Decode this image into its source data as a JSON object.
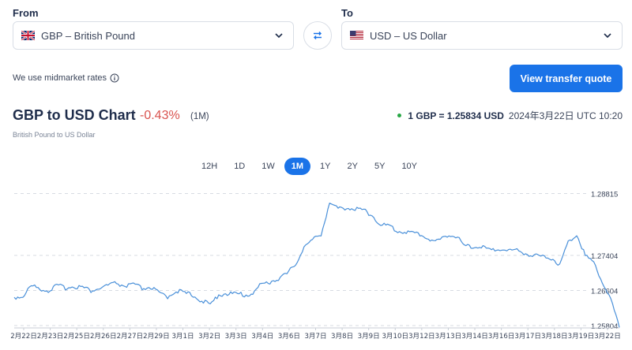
{
  "converter": {
    "from_label": "From",
    "to_label": "To",
    "from_value": "GBP – British Pound",
    "to_value": "USD – US Dollar",
    "from_flag": "uk-flag-icon",
    "to_flag": "us-flag-icon"
  },
  "midmarket_text": "We use midmarket rates",
  "cta_label": "View transfer quote",
  "colors": {
    "accent": "#1a73e8",
    "negative": "#d9534f",
    "live": "#28a745",
    "line": "#4a90d9"
  },
  "header": {
    "title": "GBP to USD Chart",
    "change": "-0.43%",
    "period": "(1M)",
    "subtitle": "British Pound to US Dollar",
    "rate": "1 GBP = 1.25834 USD",
    "timestamp": "2024年3月22日 UTC 10:20"
  },
  "ranges": [
    {
      "label": "12H",
      "active": false
    },
    {
      "label": "1D",
      "active": false
    },
    {
      "label": "1W",
      "active": false
    },
    {
      "label": "1M",
      "active": true
    },
    {
      "label": "1Y",
      "active": false
    },
    {
      "label": "2Y",
      "active": false
    },
    {
      "label": "5Y",
      "active": false
    },
    {
      "label": "10Y",
      "active": false
    }
  ],
  "chart_data": {
    "type": "line",
    "title": "",
    "xlabel": "",
    "ylabel": "",
    "ylim": [
      1.2575,
      1.2895
    ],
    "yticks": [
      "1.28815",
      "1.27404",
      "1.26604",
      "1.25804"
    ],
    "xticks": [
      "2月22日",
      "2月23日",
      "2月25日",
      "2月26日",
      "2月27日",
      "2月29日",
      "3月1日",
      "3月2日",
      "3月3日",
      "3月4日",
      "3月6日",
      "3月7日",
      "3月8日",
      "3月9日",
      "3月10日",
      "3月12日",
      "3月13日",
      "3月14日",
      "3月16日",
      "3月17日",
      "3月18日",
      "3月19日",
      "3月22日"
    ],
    "series": [
      {
        "values": [
          1.2645,
          1.2647,
          1.2671,
          1.2665,
          1.266,
          1.2671,
          1.2667,
          1.267,
          1.2668,
          1.266,
          1.2665,
          1.2672,
          1.2677,
          1.267,
          1.2674,
          1.2665,
          1.2668,
          1.2654,
          1.2646,
          1.2661,
          1.2654,
          1.265,
          1.2637,
          1.2627,
          1.2652,
          1.2653,
          1.2653,
          1.265,
          1.2654,
          1.2675,
          1.268,
          1.2688,
          1.2698,
          1.272,
          1.276,
          1.2775,
          1.279,
          1.286,
          1.2846,
          1.285,
          1.2846,
          1.2844,
          1.2832,
          1.281,
          1.2808,
          1.2795,
          1.2795,
          1.279,
          1.2787,
          1.2772,
          1.2776,
          1.279,
          1.278,
          1.276,
          1.276,
          1.276,
          1.275,
          1.2756,
          1.2752,
          1.2752,
          1.2745,
          1.274,
          1.2738,
          1.2735,
          1.272,
          1.277,
          1.279,
          1.274,
          1.2725,
          1.268,
          1.264,
          1.2576
        ]
      }
    ]
  }
}
